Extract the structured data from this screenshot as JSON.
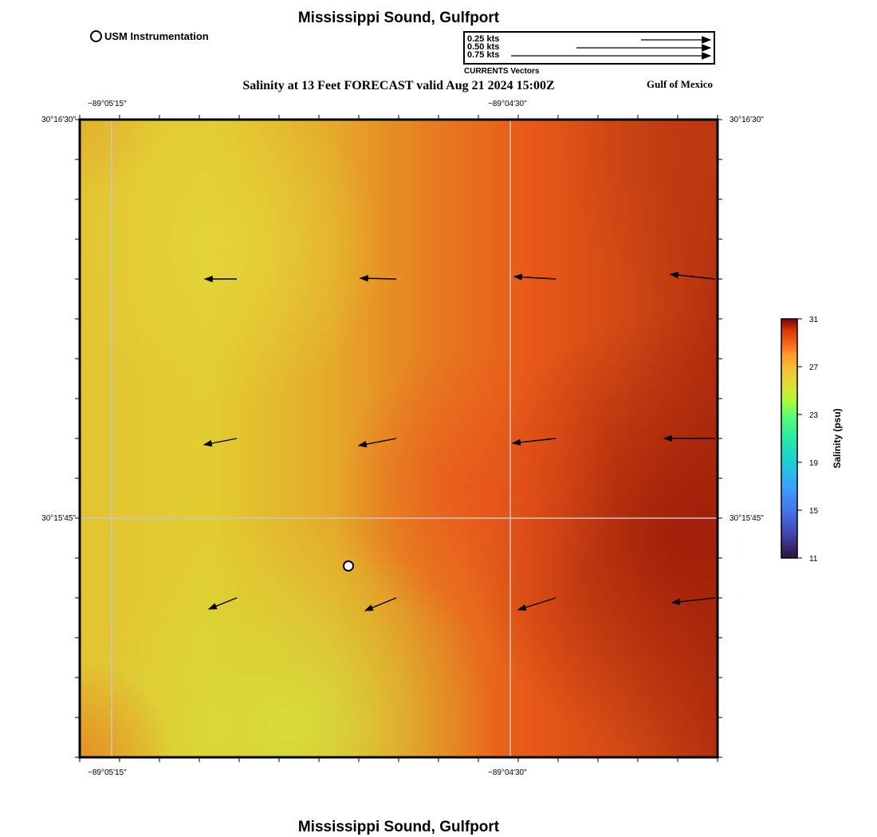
{
  "header": {
    "title": "Mississippi Sound, Gulfport",
    "subtitle": "Salinity at 13 Feet FORECAST valid Aug 21 2024 15:00Z",
    "region": "Gulf of Mexico",
    "footer_title": "Mississippi Sound, Gulfport"
  },
  "station_legend": {
    "label": "USM Instrumentation"
  },
  "vector_legend": {
    "caption": "CURRENTS Vectors",
    "entries": [
      "0.25 kts",
      "0.50 kts",
      "0.75 kts"
    ]
  },
  "axes": {
    "lon_labels": [
      "−89°05'15\"",
      "−89°04'30\""
    ],
    "lat_labels": [
      "30°16'30\"",
      "30°15'45\""
    ]
  },
  "colorbar": {
    "label": "Salinity (psu)",
    "ticks": [
      "31",
      "27",
      "23",
      "19",
      "15",
      "11"
    ],
    "min": 11,
    "max": 31
  },
  "colors": {
    "high": "#a0230a",
    "mid": "#e8521a",
    "low": "#e2cc32",
    "grid": "#c8c8c8"
  },
  "map": {
    "vectors": [
      {
        "name": "vector-r1-c1",
        "dx": -0.4,
        "dy": 0.0
      },
      {
        "name": "vector-r1-c2",
        "dx": -0.45,
        "dy": -0.01
      },
      {
        "name": "vector-r1-c3",
        "dx": -0.52,
        "dy": -0.03
      },
      {
        "name": "vector-r1-c4",
        "dx": -0.56,
        "dy": -0.06
      },
      {
        "name": "vector-r2-c1",
        "dx": -0.41,
        "dy": 0.08
      },
      {
        "name": "vector-r2-c2",
        "dx": -0.47,
        "dy": 0.09
      },
      {
        "name": "vector-r2-c3",
        "dx": -0.54,
        "dy": 0.06
      },
      {
        "name": "vector-r2-c4",
        "dx": -0.64,
        "dy": 0.0
      },
      {
        "name": "vector-r3-c1",
        "dx": -0.35,
        "dy": 0.14
      },
      {
        "name": "vector-r3-c2",
        "dx": -0.39,
        "dy": 0.16
      },
      {
        "name": "vector-r3-c3",
        "dx": -0.47,
        "dy": 0.15
      },
      {
        "name": "vector-r3-c4",
        "dx": -0.54,
        "dy": 0.06
      }
    ]
  }
}
